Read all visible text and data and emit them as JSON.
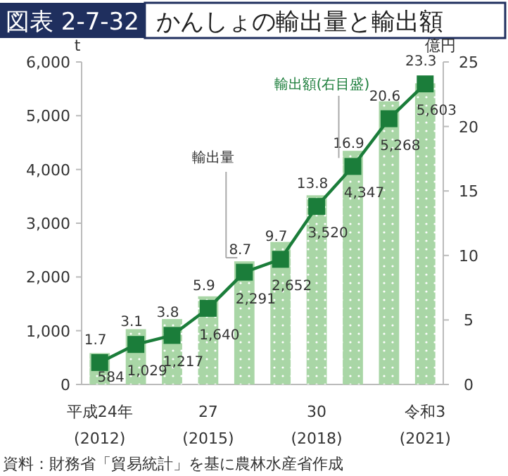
{
  "chart_data": {
    "type": "bar",
    "title": "図表 2-7-32",
    "subtitle": "かんしょの輸出量と輸出額",
    "ylabel": "t",
    "y2label": "億円",
    "categories": [
      "平成24年\n(2012)",
      null,
      null,
      "27\n(2015)",
      null,
      null,
      "30\n(2018)",
      null,
      null,
      "令和3\n(2021)"
    ],
    "series": [
      {
        "name": "輸出量",
        "color": "#a9d6a6",
        "values": [
          584,
          1029,
          1217,
          1640,
          2291,
          2652,
          3520,
          4347,
          5268,
          5603
        ],
        "value_labels": [
          "584",
          "1,029",
          "1,217",
          "1,640",
          "2,291",
          "2,652",
          "3,520",
          "4,347",
          "5,268",
          "5,603"
        ]
      },
      {
        "name": "輸出額(右目盛)",
        "type": "line",
        "axis": "y2",
        "color": "#1b7d3a",
        "marker": "square",
        "values": [
          1.7,
          3.1,
          3.8,
          5.9,
          8.7,
          9.7,
          13.8,
          16.9,
          20.6,
          23.3
        ],
        "data_labels": true
      }
    ],
    "ylim": [
      0,
      6000
    ],
    "yticks": [
      0,
      {
        "value": 1000,
        "label": "1,000"
      },
      {
        "value": 2000,
        "label": "2,000"
      },
      {
        "value": 3000,
        "label": "3,000"
      },
      {
        "value": 4000,
        "label": "4,000"
      },
      {
        "value": 5000,
        "label": "5,000"
      },
      {
        "value": 6000,
        "label": "6,000"
      }
    ],
    "y2lim": [
      0,
      25
    ],
    "y2ticks": [
      0,
      5,
      10,
      15,
      20,
      25
    ],
    "grid": false,
    "legend": false,
    "annotations": [
      "資料：財務省「貿易統計」を基に農林水産省作成"
    ]
  }
}
